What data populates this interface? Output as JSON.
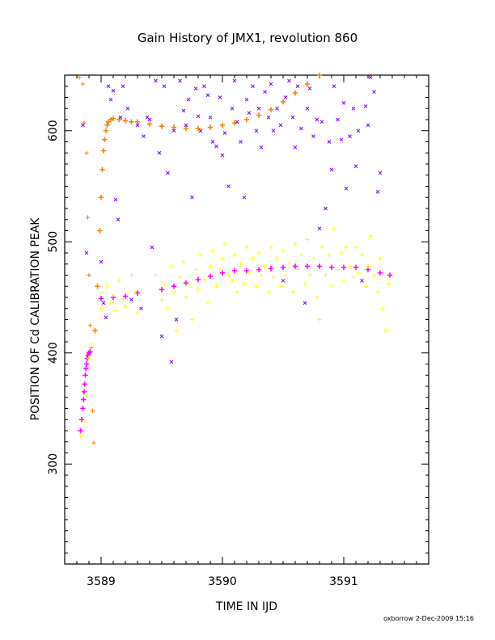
{
  "chart_data": {
    "type": "scatter",
    "title": "Gain History of JMX1, revolution 860",
    "xlabel": "TIME IN IJD",
    "ylabel": "POSITION OF Cd CALIBRATION PEAK",
    "xlim": [
      3588.7,
      3591.7
    ],
    "ylim": [
      210,
      650
    ],
    "x_ticks": [
      3589,
      3590,
      3591
    ],
    "x_tick_labels": [
      "3589",
      "3590",
      "3591"
    ],
    "y_ticks": [
      300,
      400,
      500,
      600
    ],
    "y_tick_labels": [
      "300",
      "400",
      "500",
      "600"
    ],
    "grid": false,
    "legend": "none",
    "footer": "oxborrow   2-Dec-2009 15:16",
    "series": [
      {
        "role": "low-peak-fit",
        "color": "#ff00ff",
        "marker": "plus",
        "points": [
          [
            3588.83,
            330
          ],
          [
            3588.84,
            340
          ],
          [
            3588.85,
            350
          ],
          [
            3588.855,
            358
          ],
          [
            3588.86,
            365
          ],
          [
            3588.865,
            372
          ],
          [
            3588.87,
            380
          ],
          [
            3588.875,
            386
          ],
          [
            3588.88,
            390
          ],
          [
            3588.885,
            395
          ],
          [
            3588.89,
            398
          ],
          [
            3588.9,
            400
          ],
          [
            3588.91,
            401
          ]
        ]
      },
      {
        "role": "main-fit",
        "color": "#ff00ff",
        "marker": "plus",
        "points": [
          [
            3589.0,
            449
          ],
          [
            3589.1,
            450
          ],
          [
            3589.2,
            451
          ],
          [
            3589.3,
            454
          ],
          [
            3589.5,
            457
          ],
          [
            3589.6,
            460
          ],
          [
            3589.7,
            463
          ],
          [
            3589.8,
            466
          ],
          [
            3589.9,
            469
          ],
          [
            3590.0,
            472
          ],
          [
            3590.1,
            474
          ],
          [
            3590.2,
            474
          ],
          [
            3590.3,
            475
          ],
          [
            3590.4,
            476
          ],
          [
            3590.5,
            477
          ],
          [
            3590.6,
            478
          ],
          [
            3590.7,
            478
          ],
          [
            3590.8,
            478
          ],
          [
            3590.9,
            477
          ],
          [
            3591.0,
            477
          ],
          [
            3591.1,
            477
          ],
          [
            3591.2,
            475
          ],
          [
            3591.3,
            472
          ],
          [
            3591.38,
            470
          ]
        ]
      },
      {
        "role": "high-peak-fit",
        "color": "#ff7f00",
        "marker": "plus",
        "points": [
          [
            3588.95,
            420
          ],
          [
            3588.97,
            460
          ],
          [
            3588.99,
            510
          ],
          [
            3589.0,
            540
          ],
          [
            3589.01,
            565
          ],
          [
            3589.02,
            582
          ],
          [
            3589.03,
            592
          ],
          [
            3589.04,
            600
          ],
          [
            3589.05,
            605
          ],
          [
            3589.06,
            608
          ],
          [
            3589.08,
            610
          ],
          [
            3589.1,
            611
          ],
          [
            3589.15,
            610
          ],
          [
            3589.2,
            609
          ],
          [
            3589.25,
            608
          ],
          [
            3589.3,
            608
          ],
          [
            3589.4,
            606
          ],
          [
            3589.5,
            604
          ],
          [
            3589.6,
            603
          ],
          [
            3589.7,
            602
          ],
          [
            3589.8,
            602
          ],
          [
            3589.9,
            603
          ],
          [
            3590.0,
            605
          ],
          [
            3590.1,
            607
          ],
          [
            3590.2,
            610
          ],
          [
            3590.3,
            614
          ],
          [
            3590.4,
            619
          ],
          [
            3590.5,
            626
          ],
          [
            3590.6,
            634
          ],
          [
            3590.7,
            642
          ],
          [
            3590.8,
            650
          ]
        ]
      },
      {
        "role": "high-peak-scatter",
        "color": "#ff7f00",
        "marker": "plus",
        "points": [
          [
            3588.82,
            648
          ],
          [
            3588.85,
            642
          ],
          [
            3588.88,
            580
          ],
          [
            3588.89,
            522
          ],
          [
            3588.9,
            470
          ],
          [
            3588.91,
            425
          ],
          [
            3588.92,
            405
          ],
          [
            3588.93,
            348
          ],
          [
            3588.94,
            319
          ],
          [
            3588.86,
            607
          ]
        ]
      },
      {
        "role": "main-peak-scatter",
        "color": "#ffff00",
        "marker": "plus",
        "points": [
          [
            3588.83,
            325
          ],
          [
            3588.86,
            338
          ],
          [
            3588.88,
            362
          ],
          [
            3588.9,
            395
          ],
          [
            3588.92,
            408
          ],
          [
            3589.0,
            440
          ],
          [
            3589.02,
            455
          ],
          [
            3589.05,
            460
          ],
          [
            3589.08,
            445
          ],
          [
            3589.1,
            452
          ],
          [
            3589.12,
            438
          ],
          [
            3589.15,
            465
          ],
          [
            3589.18,
            448
          ],
          [
            3589.2,
            442
          ],
          [
            3589.25,
            470
          ],
          [
            3589.28,
            455
          ],
          [
            3589.3,
            436
          ],
          [
            3589.45,
            470
          ],
          [
            3589.5,
            448
          ],
          [
            3589.52,
            462
          ],
          [
            3589.55,
            440
          ],
          [
            3589.58,
            478
          ],
          [
            3589.6,
            455
          ],
          [
            3589.62,
            420
          ],
          [
            3589.65,
            468
          ],
          [
            3589.68,
            482
          ],
          [
            3589.7,
            450
          ],
          [
            3589.72,
            462
          ],
          [
            3589.75,
            430
          ],
          [
            3589.78,
            475
          ],
          [
            3589.8,
            458
          ],
          [
            3589.82,
            488
          ],
          [
            3589.85,
            466
          ],
          [
            3589.88,
            445
          ],
          [
            3589.9,
            478
          ],
          [
            3589.92,
            492
          ],
          [
            3589.95,
            460
          ],
          [
            3589.98,
            475
          ],
          [
            3590.0,
            485
          ],
          [
            3590.02,
            498
          ],
          [
            3590.05,
            470
          ],
          [
            3590.08,
            465
          ],
          [
            3590.1,
            488
          ],
          [
            3590.12,
            455
          ],
          [
            3590.15,
            480
          ],
          [
            3590.18,
            462
          ],
          [
            3590.2,
            495
          ],
          [
            3590.22,
            472
          ],
          [
            3590.25,
            485
          ],
          [
            3590.28,
            460
          ],
          [
            3590.3,
            490
          ],
          [
            3590.32,
            470
          ],
          [
            3590.35,
            478
          ],
          [
            3590.38,
            455
          ],
          [
            3590.4,
            495
          ],
          [
            3590.42,
            468
          ],
          [
            3590.45,
            485
          ],
          [
            3590.48,
            460
          ],
          [
            3590.5,
            492
          ],
          [
            3590.52,
            470
          ],
          [
            3590.55,
            480
          ],
          [
            3590.58,
            455
          ],
          [
            3590.6,
            498
          ],
          [
            3590.62,
            475
          ],
          [
            3590.65,
            488
          ],
          [
            3590.68,
            462
          ],
          [
            3590.7,
            502
          ],
          [
            3590.72,
            470
          ],
          [
            3590.75,
            485
          ],
          [
            3590.78,
            450
          ],
          [
            3590.8,
            430
          ],
          [
            3590.82,
            495
          ],
          [
            3590.85,
            470
          ],
          [
            3590.88,
            488
          ],
          [
            3590.9,
            460
          ],
          [
            3590.92,
            512
          ],
          [
            3590.95,
            475
          ],
          [
            3590.98,
            490
          ],
          [
            3591.0,
            465
          ],
          [
            3591.02,
            495
          ],
          [
            3591.05,
            478
          ],
          [
            3591.08,
            468
          ],
          [
            3591.1,
            495
          ],
          [
            3591.12,
            472
          ],
          [
            3591.15,
            488
          ],
          [
            3591.18,
            460
          ],
          [
            3591.2,
            478
          ],
          [
            3591.22,
            505
          ],
          [
            3591.25,
            470
          ],
          [
            3591.28,
            455
          ],
          [
            3591.3,
            485
          ],
          [
            3591.32,
            440
          ],
          [
            3591.35,
            420
          ],
          [
            3591.37,
            462
          ]
        ]
      },
      {
        "role": "outliers",
        "color": "#8000ff",
        "marker": "cross",
        "points": [
          [
            3588.85,
            605
          ],
          [
            3588.88,
            490
          ],
          [
            3589.0,
            482
          ],
          [
            3589.02,
            445
          ],
          [
            3589.04,
            432
          ],
          [
            3589.06,
            640
          ],
          [
            3589.08,
            628
          ],
          [
            3589.1,
            636
          ],
          [
            3589.12,
            538
          ],
          [
            3589.14,
            520
          ],
          [
            3589.16,
            612
          ],
          [
            3589.18,
            640
          ],
          [
            3589.22,
            620
          ],
          [
            3589.25,
            448
          ],
          [
            3589.3,
            605
          ],
          [
            3589.33,
            440
          ],
          [
            3589.35,
            595
          ],
          [
            3589.38,
            612
          ],
          [
            3589.4,
            610
          ],
          [
            3589.42,
            495
          ],
          [
            3589.45,
            645
          ],
          [
            3589.48,
            580
          ],
          [
            3589.5,
            415
          ],
          [
            3589.52,
            640
          ],
          [
            3589.55,
            562
          ],
          [
            3589.58,
            392
          ],
          [
            3589.6,
            600
          ],
          [
            3589.62,
            430
          ],
          [
            3589.65,
            645
          ],
          [
            3589.68,
            618
          ],
          [
            3589.7,
            605
          ],
          [
            3589.72,
            628
          ],
          [
            3589.75,
            540
          ],
          [
            3589.78,
            638
          ],
          [
            3589.8,
            613
          ],
          [
            3589.82,
            600
          ],
          [
            3589.85,
            640
          ],
          [
            3589.88,
            632
          ],
          [
            3589.9,
            612
          ],
          [
            3589.92,
            590
          ],
          [
            3589.95,
            586
          ],
          [
            3589.98,
            630
          ],
          [
            3590.0,
            578
          ],
          [
            3590.02,
            598
          ],
          [
            3590.05,
            550
          ],
          [
            3590.08,
            620
          ],
          [
            3590.1,
            645
          ],
          [
            3590.12,
            608
          ],
          [
            3590.15,
            590
          ],
          [
            3590.18,
            540
          ],
          [
            3590.2,
            628
          ],
          [
            3590.22,
            616
          ],
          [
            3590.25,
            640
          ],
          [
            3590.28,
            600
          ],
          [
            3590.3,
            620
          ],
          [
            3590.32,
            585
          ],
          [
            3590.35,
            635
          ],
          [
            3590.38,
            612
          ],
          [
            3590.4,
            642
          ],
          [
            3590.42,
            600
          ],
          [
            3590.45,
            620
          ],
          [
            3590.48,
            605
          ],
          [
            3590.5,
            465
          ],
          [
            3590.52,
            630
          ],
          [
            3590.55,
            645
          ],
          [
            3590.58,
            612
          ],
          [
            3590.6,
            585
          ],
          [
            3590.62,
            640
          ],
          [
            3590.65,
            602
          ],
          [
            3590.68,
            445
          ],
          [
            3590.7,
            620
          ],
          [
            3590.72,
            638
          ],
          [
            3590.75,
            595
          ],
          [
            3590.78,
            610
          ],
          [
            3590.8,
            512
          ],
          [
            3590.82,
            608
          ],
          [
            3590.85,
            530
          ],
          [
            3590.88,
            590
          ],
          [
            3590.9,
            565
          ],
          [
            3590.92,
            640
          ],
          [
            3590.95,
            610
          ],
          [
            3590.98,
            592
          ],
          [
            3591.0,
            625
          ],
          [
            3591.02,
            548
          ],
          [
            3591.05,
            595
          ],
          [
            3591.08,
            620
          ],
          [
            3591.1,
            568
          ],
          [
            3591.12,
            600
          ],
          [
            3591.15,
            465
          ],
          [
            3591.18,
            622
          ],
          [
            3591.2,
            605
          ],
          [
            3591.22,
            648
          ],
          [
            3591.25,
            635
          ],
          [
            3591.28,
            545
          ],
          [
            3591.3,
            562
          ]
        ]
      }
    ]
  }
}
